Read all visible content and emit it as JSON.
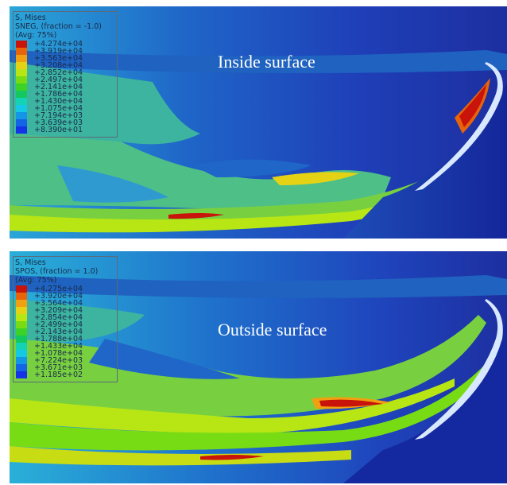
{
  "colors": {
    "band_colors": [
      "#c8140a",
      "#e8640a",
      "#f0a010",
      "#e6d214",
      "#b8e614",
      "#78dc14",
      "#3cd228",
      "#14c860",
      "#14d2b4",
      "#14c8e6",
      "#1496e6",
      "#1464e6",
      "#1432e6"
    ],
    "base_blue": "#1f3fb8",
    "label_text": "#ffffff"
  },
  "panels": [
    {
      "legend": {
        "title": "S, Mises",
        "subtitle": "SNEG, (fraction = -1.0)",
        "avg": "(Avg: 75%)",
        "values": [
          "+4.274e+04",
          "+3.919e+04",
          "+3.563e+04",
          "+3.208e+04",
          "+2.852e+04",
          "+2.497e+04",
          "+2.141e+04",
          "+1.786e+04",
          "+1.430e+04",
          "+1.075e+04",
          "+7.194e+03",
          "+3.639e+03",
          "+8.390e+01"
        ]
      },
      "surface_label": "Inside surface"
    },
    {
      "legend": {
        "title": "S, Mises",
        "subtitle": "SPOS, (fraction = 1.0)",
        "avg": "(Avg: 75%)",
        "values": [
          "+4.275e+04",
          "+3.920e+04",
          "+3.564e+04",
          "+3.209e+04",
          "+2.854e+04",
          "+2.499e+04",
          "+2.143e+04",
          "+1.788e+04",
          "+1.433e+04",
          "+1.078e+04",
          "+7.224e+03",
          "+3.671e+03",
          "+1.185e+02"
        ]
      },
      "surface_label": "Outside surface"
    }
  ]
}
